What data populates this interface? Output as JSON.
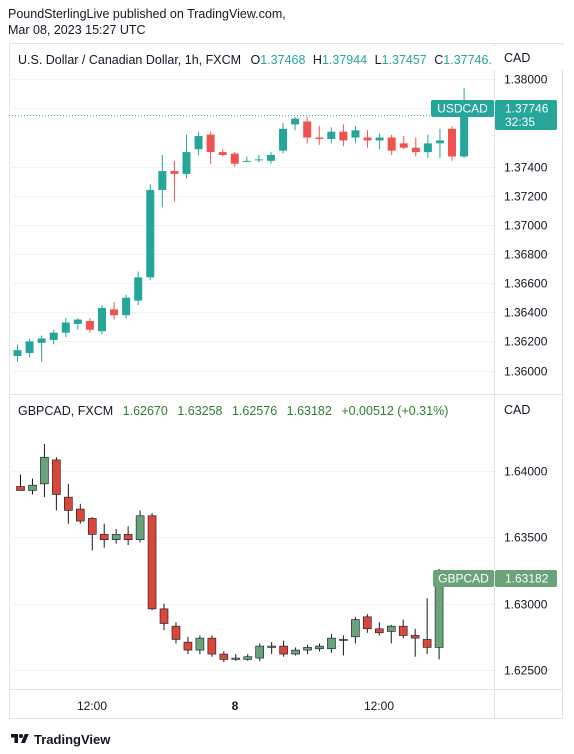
{
  "publisher": {
    "line1": "PoundSterlingLive published on TradingView.com,",
    "line2": "Mar 08, 2023 15:27 UTC"
  },
  "colors": {
    "up": "#26a69a",
    "down": "#ef5350",
    "up2": "#6aa27a",
    "down2": "#d9473a",
    "legend_text": "#131722",
    "up_text": "#26a69a",
    "green_text": "#2e7d32"
  },
  "top_pane": {
    "symbol": "U.S. Dollar / Canadian Dollar, 1h, FXCM",
    "o_label": "O",
    "o_value": "1.37468",
    "h_label": "H",
    "h_value": "1.37944",
    "l_label": "L",
    "l_value": "1.37457",
    "c_label": "C",
    "c_value": "1.37746...",
    "currency": "CAD",
    "price_tag_symbol": "USDCAD",
    "price_tag_value": "1.37746",
    "countdown": "32:35"
  },
  "bottom_pane": {
    "symbol": "GBPCAD, FXCM",
    "open": "1.62670",
    "high": "1.63258",
    "low": "1.62576",
    "close": "1.63182",
    "change": "+0.00512 (+0.31%)",
    "currency": "CAD",
    "price_tag_symbol": "GBPCAD",
    "price_tag_value": "1.63182"
  },
  "time_axis": [
    "12:00",
    "8",
    "12:00"
  ],
  "footer": {
    "brand": "TradingView"
  },
  "chart_data": [
    {
      "type": "candlestick",
      "title": "U.S. Dollar / Canadian Dollar, 1h, FXCM",
      "ylabel": "CAD",
      "ylim": [
        1.3588,
        1.3805
      ],
      "yticks": [
        "1.38000",
        "1.37800",
        "1.37400",
        "1.37200",
        "1.37000",
        "1.36800",
        "1.36600",
        "1.36400",
        "1.36200",
        "1.36000"
      ],
      "ytick_values": [
        1.38,
        1.378,
        1.374,
        1.372,
        1.37,
        1.368,
        1.366,
        1.364,
        1.362,
        1.36
      ],
      "candles": [
        {
          "o": 1.361,
          "h": 1.3618,
          "l": 1.3606,
          "c": 1.3614
        },
        {
          "o": 1.3612,
          "h": 1.3622,
          "l": 1.3609,
          "c": 1.362
        },
        {
          "o": 1.3619,
          "h": 1.3624,
          "l": 1.3606,
          "c": 1.3622
        },
        {
          "o": 1.3621,
          "h": 1.3628,
          "l": 1.3618,
          "c": 1.3626
        },
        {
          "o": 1.3626,
          "h": 1.3636,
          "l": 1.3623,
          "c": 1.3633
        },
        {
          "o": 1.3632,
          "h": 1.3636,
          "l": 1.3628,
          "c": 1.3635
        },
        {
          "o": 1.3634,
          "h": 1.3636,
          "l": 1.3626,
          "c": 1.3628
        },
        {
          "o": 1.3627,
          "h": 1.3645,
          "l": 1.3625,
          "c": 1.3643
        },
        {
          "o": 1.3642,
          "h": 1.3647,
          "l": 1.3635,
          "c": 1.3638
        },
        {
          "o": 1.3638,
          "h": 1.3652,
          "l": 1.3636,
          "c": 1.365
        },
        {
          "o": 1.3648,
          "h": 1.3668,
          "l": 1.3645,
          "c": 1.3664
        },
        {
          "o": 1.3664,
          "h": 1.3728,
          "l": 1.3662,
          "c": 1.3724
        },
        {
          "o": 1.3724,
          "h": 1.3748,
          "l": 1.3712,
          "c": 1.3737
        },
        {
          "o": 1.3737,
          "h": 1.3744,
          "l": 1.3716,
          "c": 1.3735
        },
        {
          "o": 1.3735,
          "h": 1.3762,
          "l": 1.3732,
          "c": 1.375
        },
        {
          "o": 1.3752,
          "h": 1.3764,
          "l": 1.3748,
          "c": 1.3761
        },
        {
          "o": 1.3762,
          "h": 1.3764,
          "l": 1.3742,
          "c": 1.375
        },
        {
          "o": 1.375,
          "h": 1.3752,
          "l": 1.3747,
          "c": 1.3748
        },
        {
          "o": 1.3749,
          "h": 1.375,
          "l": 1.374,
          "c": 1.3742
        },
        {
          "o": 1.3744,
          "h": 1.3747,
          "l": 1.3743,
          "c": 1.3744
        },
        {
          "o": 1.3745,
          "h": 1.3748,
          "l": 1.3743,
          "c": 1.3745
        },
        {
          "o": 1.3744,
          "h": 1.375,
          "l": 1.3742,
          "c": 1.3748
        },
        {
          "o": 1.3751,
          "h": 1.377,
          "l": 1.3749,
          "c": 1.3766
        },
        {
          "o": 1.3769,
          "h": 1.3774,
          "l": 1.3765,
          "c": 1.3773
        },
        {
          "o": 1.3771,
          "h": 1.3774,
          "l": 1.3756,
          "c": 1.376
        },
        {
          "o": 1.376,
          "h": 1.3768,
          "l": 1.3755,
          "c": 1.3759
        },
        {
          "o": 1.3759,
          "h": 1.3767,
          "l": 1.3756,
          "c": 1.3764
        },
        {
          "o": 1.3764,
          "h": 1.3769,
          "l": 1.3754,
          "c": 1.3758
        },
        {
          "o": 1.376,
          "h": 1.3768,
          "l": 1.3756,
          "c": 1.3765
        },
        {
          "o": 1.376,
          "h": 1.3765,
          "l": 1.3753,
          "c": 1.3758
        },
        {
          "o": 1.3758,
          "h": 1.3763,
          "l": 1.3752,
          "c": 1.376
        },
        {
          "o": 1.376,
          "h": 1.3762,
          "l": 1.3748,
          "c": 1.3751
        },
        {
          "o": 1.3756,
          "h": 1.3761,
          "l": 1.3752,
          "c": 1.3753
        },
        {
          "o": 1.3753,
          "h": 1.376,
          "l": 1.3747,
          "c": 1.375
        },
        {
          "o": 1.375,
          "h": 1.3762,
          "l": 1.3746,
          "c": 1.3756
        },
        {
          "o": 1.3756,
          "h": 1.3766,
          "l": 1.3746,
          "c": 1.3758
        },
        {
          "o": 1.3766,
          "h": 1.3768,
          "l": 1.3744,
          "c": 1.3747
        },
        {
          "o": 1.3747,
          "h": 1.3794,
          "l": 1.3746,
          "c": 1.3775
        }
      ]
    },
    {
      "type": "candlestick",
      "title": "GBPCAD, FXCM",
      "ylabel": "CAD",
      "ylim": [
        1.6238,
        1.6438
      ],
      "yticks": [
        "1.64000",
        "1.63500",
        "1.63000",
        "1.62500"
      ],
      "ytick_values": [
        1.64,
        1.635,
        1.63,
        1.625
      ],
      "candles": [
        {
          "o": 1.6388,
          "h": 1.6397,
          "l": 1.6385,
          "c": 1.6385
        },
        {
          "o": 1.6385,
          "h": 1.6394,
          "l": 1.6382,
          "c": 1.6389
        },
        {
          "o": 1.639,
          "h": 1.642,
          "l": 1.638,
          "c": 1.641
        },
        {
          "o": 1.6408,
          "h": 1.641,
          "l": 1.637,
          "c": 1.6382
        },
        {
          "o": 1.638,
          "h": 1.639,
          "l": 1.636,
          "c": 1.637
        },
        {
          "o": 1.6371,
          "h": 1.6375,
          "l": 1.636,
          "c": 1.6362
        },
        {
          "o": 1.6364,
          "h": 1.6365,
          "l": 1.634,
          "c": 1.6352
        },
        {
          "o": 1.6352,
          "h": 1.636,
          "l": 1.6342,
          "c": 1.6348
        },
        {
          "o": 1.6348,
          "h": 1.6356,
          "l": 1.6345,
          "c": 1.6352
        },
        {
          "o": 1.6352,
          "h": 1.6358,
          "l": 1.6344,
          "c": 1.6348
        },
        {
          "o": 1.6348,
          "h": 1.637,
          "l": 1.6346,
          "c": 1.6366
        },
        {
          "o": 1.6366,
          "h": 1.6368,
          "l": 1.6295,
          "c": 1.6296
        },
        {
          "o": 1.6296,
          "h": 1.63,
          "l": 1.628,
          "c": 1.6285
        },
        {
          "o": 1.6283,
          "h": 1.6286,
          "l": 1.627,
          "c": 1.6273
        },
        {
          "o": 1.6271,
          "h": 1.6275,
          "l": 1.6262,
          "c": 1.6265
        },
        {
          "o": 1.6265,
          "h": 1.6276,
          "l": 1.6262,
          "c": 1.6274
        },
        {
          "o": 1.6274,
          "h": 1.6276,
          "l": 1.626,
          "c": 1.6262
        },
        {
          "o": 1.6262,
          "h": 1.6264,
          "l": 1.6256,
          "c": 1.6258
        },
        {
          "o": 1.6258,
          "h": 1.6262,
          "l": 1.6257,
          "c": 1.6259
        },
        {
          "o": 1.6258,
          "h": 1.6262,
          "l": 1.6257,
          "c": 1.626
        },
        {
          "o": 1.6259,
          "h": 1.627,
          "l": 1.6257,
          "c": 1.6268
        },
        {
          "o": 1.6267,
          "h": 1.6271,
          "l": 1.6262,
          "c": 1.6268
        },
        {
          "o": 1.6268,
          "h": 1.6272,
          "l": 1.626,
          "c": 1.6262
        },
        {
          "o": 1.6262,
          "h": 1.6267,
          "l": 1.6261,
          "c": 1.6265
        },
        {
          "o": 1.6265,
          "h": 1.6269,
          "l": 1.6262,
          "c": 1.6267
        },
        {
          "o": 1.6266,
          "h": 1.627,
          "l": 1.6264,
          "c": 1.6268
        },
        {
          "o": 1.6266,
          "h": 1.6277,
          "l": 1.6263,
          "c": 1.6274
        },
        {
          "o": 1.6273,
          "h": 1.6276,
          "l": 1.6261,
          "c": 1.6273
        },
        {
          "o": 1.6275,
          "h": 1.629,
          "l": 1.627,
          "c": 1.6288
        },
        {
          "o": 1.629,
          "h": 1.6292,
          "l": 1.6278,
          "c": 1.6281
        },
        {
          "o": 1.6281,
          "h": 1.6286,
          "l": 1.6276,
          "c": 1.6278
        },
        {
          "o": 1.6279,
          "h": 1.6284,
          "l": 1.627,
          "c": 1.6283
        },
        {
          "o": 1.6283,
          "h": 1.6288,
          "l": 1.6274,
          "c": 1.6276
        },
        {
          "o": 1.6276,
          "h": 1.6281,
          "l": 1.626,
          "c": 1.6274
        },
        {
          "o": 1.6273,
          "h": 1.6304,
          "l": 1.6262,
          "c": 1.6267
        },
        {
          "o": 1.6267,
          "h": 1.6326,
          "l": 1.6258,
          "c": 1.6318
        }
      ]
    }
  ]
}
